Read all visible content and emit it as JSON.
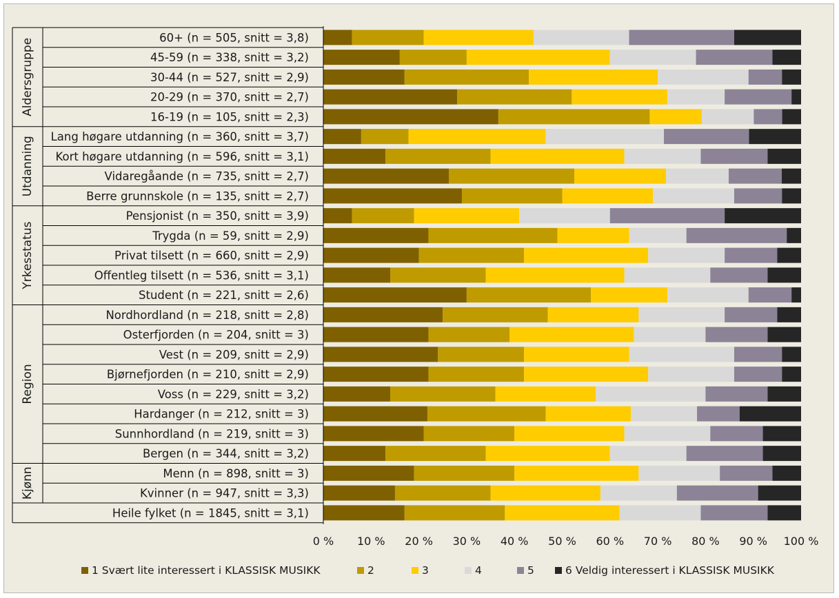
{
  "chart_data": {
    "type": "bar",
    "orientation": "horizontal",
    "stacked": "percent",
    "categories": [
      "60+ (n = 505, snitt = 3,8)",
      "45-59 (n = 338, snitt = 3,2)",
      "30-44 (n = 527, snitt = 2,9)",
      "20-29 (n = 370, snitt = 2,7)",
      "16-19 (n = 105, snitt = 2,3)",
      "Lang høgare utdanning (n = 360, snitt = 3,7)",
      "Kort høgare utdanning (n = 596, snitt = 3,1)",
      "Vidaregåande (n = 735, snitt = 2,7)",
      "Berre grunnskole (n = 135, snitt = 2,7)",
      "Pensjonist (n = 350, snitt = 3,9)",
      "Trygda (n = 59, snitt = 2,9)",
      "Privat tilsett (n = 660, snitt = 2,9)",
      "Offentleg tilsett (n = 536, snitt = 3,1)",
      "Student (n = 221, snitt = 2,6)",
      "Nordhordland (n = 218, snitt = 2,8)",
      "Osterfjorden (n = 204, snitt = 3)",
      "Vest (n = 209, snitt = 2,9)",
      "Bjørnefjorden (n = 210, snitt = 2,9)",
      "Voss (n = 229, snitt = 3,2)",
      "Hardanger (n = 212, snitt = 3)",
      "Sunnhordland (n = 219, snitt = 3)",
      "Bergen (n = 344, snitt = 3,2)",
      "Menn (n = 898, snitt = 3)",
      "Kvinner (n = 947, snitt = 3,3)",
      "Heile fylket (n = 1845, snitt = 3,1)"
    ],
    "groups": [
      {
        "label": "Aldersgruppe",
        "start": 0,
        "end": 4
      },
      {
        "label": "Utdanning",
        "start": 5,
        "end": 8
      },
      {
        "label": "Yrkesstatus",
        "start": 9,
        "end": 13
      },
      {
        "label": "Region",
        "start": 14,
        "end": 21
      },
      {
        "label": "Kjønn",
        "start": 22,
        "end": 23
      }
    ],
    "series": [
      {
        "name": "1 Svært lite interessert i KLASSISK MUSIKK",
        "color": "#7f6000",
        "values": [
          6,
          16,
          17,
          28,
          37,
          8,
          13,
          26,
          29,
          6,
          22,
          20,
          14,
          30,
          25,
          22,
          24,
          22,
          14,
          22,
          21,
          13,
          19,
          15,
          17
        ]
      },
      {
        "name": "2",
        "color": "#bf9b00",
        "values": [
          15,
          14,
          26,
          24,
          32,
          10,
          22,
          26,
          21,
          13,
          27,
          22,
          20,
          26,
          22,
          17,
          18,
          20,
          22,
          25,
          19,
          21,
          21,
          20,
          21
        ]
      },
      {
        "name": "3",
        "color": "#ffcc00",
        "values": [
          23,
          30,
          27,
          20,
          11,
          29,
          28,
          19,
          19,
          22,
          15,
          26,
          29,
          16,
          19,
          26,
          22,
          26,
          21,
          18,
          23,
          26,
          26,
          23,
          24
        ]
      },
      {
        "name": "4",
        "color": "#d9d9d9",
        "values": [
          20,
          18,
          19,
          12,
          11,
          25,
          16,
          13,
          17,
          19,
          12,
          16,
          18,
          17,
          18,
          15,
          22,
          18,
          23,
          14,
          18,
          16,
          17,
          16,
          17
        ]
      },
      {
        "name": "5",
        "color": "#8c8396",
        "values": [
          22,
          16,
          7,
          14,
          6,
          18,
          14,
          11,
          10,
          24,
          21,
          11,
          12,
          9,
          11,
          13,
          10,
          10,
          13,
          9,
          11,
          16,
          11,
          17,
          14
        ]
      },
      {
        "name": "6 Veldig interessert i KLASSISK MUSIKK",
        "color": "#262626",
        "values": [
          14,
          6,
          4,
          2,
          4,
          11,
          7,
          4,
          4,
          16,
          3,
          5,
          7,
          2,
          5,
          7,
          4,
          4,
          7,
          13,
          8,
          8,
          6,
          9,
          7
        ]
      }
    ],
    "xlim": [
      0,
      100
    ],
    "xticks": [
      "0 %",
      "10 %",
      "20 %",
      "30 %",
      "40 %",
      "50 %",
      "60 %",
      "70 %",
      "80 %",
      "90 %",
      "100 %"
    ],
    "legend_position": "bottom",
    "grid": false
  }
}
